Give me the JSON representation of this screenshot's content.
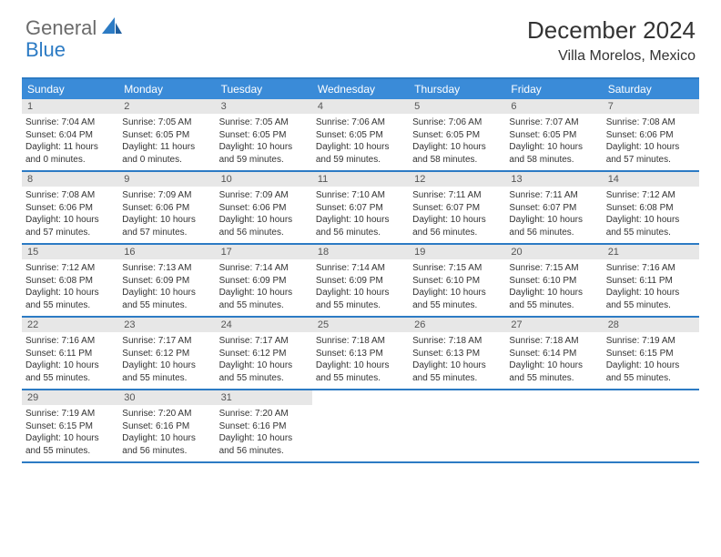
{
  "logo": {
    "text_general": "General",
    "text_blue": "Blue"
  },
  "title": "December 2024",
  "location": "Villa Morelos, Mexico",
  "colors": {
    "header_bg": "#3a8bd8",
    "header_text": "#ffffff",
    "border": "#2c7bc4",
    "daynum_bg": "#e7e7e7",
    "daynum_text": "#555555",
    "body_text": "#333333",
    "logo_gray": "#6b6b6b",
    "logo_blue": "#2c7bc4",
    "page_bg": "#ffffff"
  },
  "day_headers": [
    "Sunday",
    "Monday",
    "Tuesday",
    "Wednesday",
    "Thursday",
    "Friday",
    "Saturday"
  ],
  "weeks": [
    [
      {
        "n": "1",
        "sr": "Sunrise: 7:04 AM",
        "ss": "Sunset: 6:04 PM",
        "dl": "Daylight: 11 hours and 0 minutes."
      },
      {
        "n": "2",
        "sr": "Sunrise: 7:05 AM",
        "ss": "Sunset: 6:05 PM",
        "dl": "Daylight: 11 hours and 0 minutes."
      },
      {
        "n": "3",
        "sr": "Sunrise: 7:05 AM",
        "ss": "Sunset: 6:05 PM",
        "dl": "Daylight: 10 hours and 59 minutes."
      },
      {
        "n": "4",
        "sr": "Sunrise: 7:06 AM",
        "ss": "Sunset: 6:05 PM",
        "dl": "Daylight: 10 hours and 59 minutes."
      },
      {
        "n": "5",
        "sr": "Sunrise: 7:06 AM",
        "ss": "Sunset: 6:05 PM",
        "dl": "Daylight: 10 hours and 58 minutes."
      },
      {
        "n": "6",
        "sr": "Sunrise: 7:07 AM",
        "ss": "Sunset: 6:05 PM",
        "dl": "Daylight: 10 hours and 58 minutes."
      },
      {
        "n": "7",
        "sr": "Sunrise: 7:08 AM",
        "ss": "Sunset: 6:06 PM",
        "dl": "Daylight: 10 hours and 57 minutes."
      }
    ],
    [
      {
        "n": "8",
        "sr": "Sunrise: 7:08 AM",
        "ss": "Sunset: 6:06 PM",
        "dl": "Daylight: 10 hours and 57 minutes."
      },
      {
        "n": "9",
        "sr": "Sunrise: 7:09 AM",
        "ss": "Sunset: 6:06 PM",
        "dl": "Daylight: 10 hours and 57 minutes."
      },
      {
        "n": "10",
        "sr": "Sunrise: 7:09 AM",
        "ss": "Sunset: 6:06 PM",
        "dl": "Daylight: 10 hours and 56 minutes."
      },
      {
        "n": "11",
        "sr": "Sunrise: 7:10 AM",
        "ss": "Sunset: 6:07 PM",
        "dl": "Daylight: 10 hours and 56 minutes."
      },
      {
        "n": "12",
        "sr": "Sunrise: 7:11 AM",
        "ss": "Sunset: 6:07 PM",
        "dl": "Daylight: 10 hours and 56 minutes."
      },
      {
        "n": "13",
        "sr": "Sunrise: 7:11 AM",
        "ss": "Sunset: 6:07 PM",
        "dl": "Daylight: 10 hours and 56 minutes."
      },
      {
        "n": "14",
        "sr": "Sunrise: 7:12 AM",
        "ss": "Sunset: 6:08 PM",
        "dl": "Daylight: 10 hours and 55 minutes."
      }
    ],
    [
      {
        "n": "15",
        "sr": "Sunrise: 7:12 AM",
        "ss": "Sunset: 6:08 PM",
        "dl": "Daylight: 10 hours and 55 minutes."
      },
      {
        "n": "16",
        "sr": "Sunrise: 7:13 AM",
        "ss": "Sunset: 6:09 PM",
        "dl": "Daylight: 10 hours and 55 minutes."
      },
      {
        "n": "17",
        "sr": "Sunrise: 7:14 AM",
        "ss": "Sunset: 6:09 PM",
        "dl": "Daylight: 10 hours and 55 minutes."
      },
      {
        "n": "18",
        "sr": "Sunrise: 7:14 AM",
        "ss": "Sunset: 6:09 PM",
        "dl": "Daylight: 10 hours and 55 minutes."
      },
      {
        "n": "19",
        "sr": "Sunrise: 7:15 AM",
        "ss": "Sunset: 6:10 PM",
        "dl": "Daylight: 10 hours and 55 minutes."
      },
      {
        "n": "20",
        "sr": "Sunrise: 7:15 AM",
        "ss": "Sunset: 6:10 PM",
        "dl": "Daylight: 10 hours and 55 minutes."
      },
      {
        "n": "21",
        "sr": "Sunrise: 7:16 AM",
        "ss": "Sunset: 6:11 PM",
        "dl": "Daylight: 10 hours and 55 minutes."
      }
    ],
    [
      {
        "n": "22",
        "sr": "Sunrise: 7:16 AM",
        "ss": "Sunset: 6:11 PM",
        "dl": "Daylight: 10 hours and 55 minutes."
      },
      {
        "n": "23",
        "sr": "Sunrise: 7:17 AM",
        "ss": "Sunset: 6:12 PM",
        "dl": "Daylight: 10 hours and 55 minutes."
      },
      {
        "n": "24",
        "sr": "Sunrise: 7:17 AM",
        "ss": "Sunset: 6:12 PM",
        "dl": "Daylight: 10 hours and 55 minutes."
      },
      {
        "n": "25",
        "sr": "Sunrise: 7:18 AM",
        "ss": "Sunset: 6:13 PM",
        "dl": "Daylight: 10 hours and 55 minutes."
      },
      {
        "n": "26",
        "sr": "Sunrise: 7:18 AM",
        "ss": "Sunset: 6:13 PM",
        "dl": "Daylight: 10 hours and 55 minutes."
      },
      {
        "n": "27",
        "sr": "Sunrise: 7:18 AM",
        "ss": "Sunset: 6:14 PM",
        "dl": "Daylight: 10 hours and 55 minutes."
      },
      {
        "n": "28",
        "sr": "Sunrise: 7:19 AM",
        "ss": "Sunset: 6:15 PM",
        "dl": "Daylight: 10 hours and 55 minutes."
      }
    ],
    [
      {
        "n": "29",
        "sr": "Sunrise: 7:19 AM",
        "ss": "Sunset: 6:15 PM",
        "dl": "Daylight: 10 hours and 55 minutes."
      },
      {
        "n": "30",
        "sr": "Sunrise: 7:20 AM",
        "ss": "Sunset: 6:16 PM",
        "dl": "Daylight: 10 hours and 56 minutes."
      },
      {
        "n": "31",
        "sr": "Sunrise: 7:20 AM",
        "ss": "Sunset: 6:16 PM",
        "dl": "Daylight: 10 hours and 56 minutes."
      },
      null,
      null,
      null,
      null
    ]
  ]
}
